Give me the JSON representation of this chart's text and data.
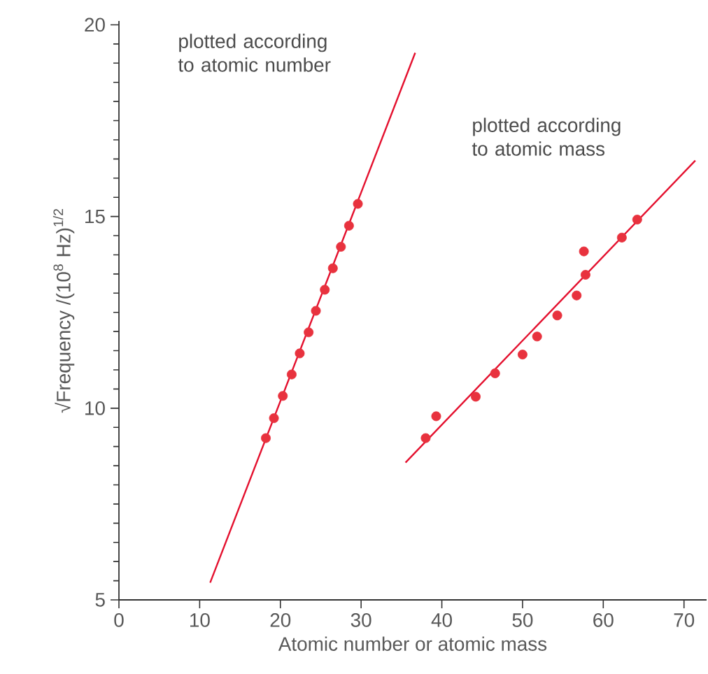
{
  "chart_data": {
    "type": "scatter",
    "xlabel": "Atomic number or atomic mass",
    "ylabel": "√Frequency /(10$^{8}$ Hz)$^{1/2}$",
    "xlim": [
      0,
      72.8
    ],
    "ylim": [
      5,
      20.1
    ],
    "xticks": [
      0,
      10,
      20,
      30,
      40,
      50,
      60,
      70
    ],
    "yticks": [
      5,
      10,
      15,
      20
    ],
    "grid": false,
    "annotations": [
      "plotted according to atomic number",
      "plotted according to atomic mass"
    ],
    "series": [
      {
        "type": "line",
        "marker": "none",
        "color": "#e4102e",
        "x": [
          11.3,
          36.7
        ],
        "values": [
          5.45,
          19.27
        ]
      },
      {
        "marker": "circle",
        "color": "#e8323e",
        "x": [
          18.2,
          19.2,
          20.3,
          21.4,
          22.4,
          23.5,
          24.4,
          25.5,
          26.5,
          27.5,
          28.5,
          29.6
        ],
        "values": [
          9.22,
          9.74,
          10.32,
          10.88,
          11.43,
          11.98,
          12.54,
          13.09,
          13.65,
          14.21,
          14.76,
          15.33
        ]
      },
      {
        "type": "line",
        "marker": "none",
        "color": "#e4102e",
        "x": [
          35.5,
          71.4
        ],
        "values": [
          8.58,
          16.46
        ]
      },
      {
        "marker": "circle",
        "color": "#e8323e",
        "x": [
          38.0,
          39.3,
          44.2,
          46.6,
          50.0,
          51.8,
          54.3,
          56.7,
          57.6,
          57.8,
          62.3,
          64.2
        ],
        "values": [
          9.22,
          9.79,
          10.3,
          10.91,
          11.4,
          11.87,
          12.42,
          12.94,
          14.09,
          13.48,
          14.45,
          14.92
        ]
      }
    ]
  }
}
